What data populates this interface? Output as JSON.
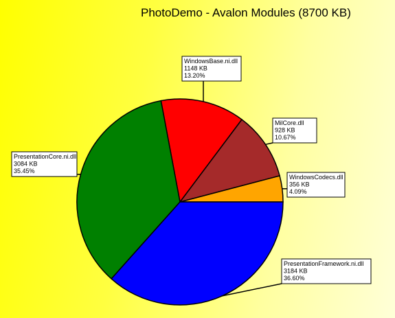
{
  "chart_data": {
    "type": "pie",
    "title": "PhotoDemo - Avalon Modules (8700 KB)",
    "slices": [
      {
        "name": "WindowsCodecs.dll",
        "value_kb": 356,
        "size_label": "356 KB",
        "percent_label": "4.09%",
        "color": "#ffa500"
      },
      {
        "name": "MilCore.dll",
        "value_kb": 928,
        "size_label": "928 KB",
        "percent_label": "10.67%",
        "color": "#a52a2a"
      },
      {
        "name": "WindowsBase.ni.dll",
        "value_kb": 1148,
        "size_label": "1148 KB",
        "percent_label": "13.20%",
        "color": "#ff0000"
      },
      {
        "name": "PresentationCore.ni.dll",
        "value_kb": 3084,
        "size_label": "3084 KB",
        "percent_label": "35.45%",
        "color": "#008000"
      },
      {
        "name": "PresentationFramework.ni.dll",
        "value_kb": 3184,
        "size_label": "3184 KB",
        "percent_label": "36.60%",
        "color": "#0000ff"
      }
    ]
  }
}
